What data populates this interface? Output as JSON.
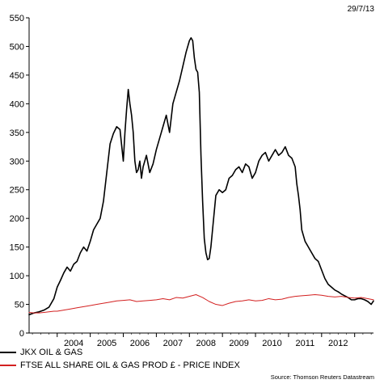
{
  "header": {
    "date": "29/7/13"
  },
  "footer": {
    "source": "Source: Thomson Reuters Datastream"
  },
  "chart_data": {
    "type": "line",
    "ylim": [
      0,
      550
    ],
    "yticks": [
      0,
      50,
      100,
      150,
      200,
      250,
      300,
      350,
      400,
      450,
      500,
      550
    ],
    "xlim": [
      2003.15,
      2013.57
    ],
    "year_labels": [
      "2004",
      "2005",
      "2006",
      "2007",
      "2008",
      "2009",
      "2010",
      "2011",
      "2012"
    ],
    "year_label_positions": [
      2004.5,
      2005.5,
      2006.5,
      2007.5,
      2008.5,
      2009.5,
      2010.5,
      2011.5,
      2012.5
    ],
    "year_boundaries": [
      2004,
      2005,
      2006,
      2007,
      2008,
      2009,
      2010,
      2011,
      2012,
      2013
    ],
    "grid": false,
    "legend_position": "bottom-left",
    "series": [
      {
        "name": "JKX OIL & GAS",
        "color": "#000000",
        "x": [
          2003.15,
          2003.3,
          2003.45,
          2003.6,
          2003.75,
          2003.9,
          2004.0,
          2004.1,
          2004.2,
          2004.3,
          2004.4,
          2004.5,
          2004.6,
          2004.7,
          2004.8,
          2004.9,
          2005.0,
          2005.1,
          2005.2,
          2005.3,
          2005.4,
          2005.5,
          2005.6,
          2005.7,
          2005.8,
          2005.9,
          2006.0,
          2006.05,
          2006.1,
          2006.15,
          2006.2,
          2006.25,
          2006.3,
          2006.35,
          2006.4,
          2006.45,
          2006.5,
          2006.55,
          2006.6,
          2006.7,
          2006.8,
          2006.9,
          2007.0,
          2007.1,
          2007.2,
          2007.3,
          2007.4,
          2007.5,
          2007.6,
          2007.7,
          2007.8,
          2007.9,
          2008.0,
          2008.05,
          2008.1,
          2008.15,
          2008.2,
          2008.25,
          2008.3,
          2008.35,
          2008.4,
          2008.45,
          2008.5,
          2008.55,
          2008.6,
          2008.65,
          2008.7,
          2008.75,
          2008.8,
          2008.9,
          2009.0,
          2009.1,
          2009.2,
          2009.3,
          2009.4,
          2009.5,
          2009.6,
          2009.7,
          2009.8,
          2009.9,
          2010.0,
          2010.1,
          2010.2,
          2010.3,
          2010.4,
          2010.5,
          2010.6,
          2010.7,
          2010.8,
          2010.9,
          2011.0,
          2011.1,
          2011.2,
          2011.25,
          2011.3,
          2011.35,
          2011.4,
          2011.5,
          2011.6,
          2011.7,
          2011.8,
          2011.9,
          2012.0,
          2012.1,
          2012.2,
          2012.3,
          2012.4,
          2012.5,
          2012.6,
          2012.7,
          2012.8,
          2012.9,
          2013.0,
          2013.1,
          2013.2,
          2013.3,
          2013.4,
          2013.5,
          2013.57
        ],
        "y": [
          32,
          35,
          37,
          40,
          45,
          60,
          80,
          92,
          105,
          115,
          108,
          120,
          125,
          140,
          150,
          143,
          160,
          180,
          190,
          200,
          230,
          280,
          330,
          348,
          360,
          355,
          300,
          350,
          390,
          425,
          400,
          380,
          350,
          300,
          280,
          285,
          300,
          270,
          290,
          310,
          280,
          295,
          320,
          340,
          360,
          380,
          350,
          400,
          420,
          440,
          465,
          490,
          510,
          515,
          510,
          480,
          460,
          455,
          420,
          310,
          230,
          165,
          140,
          128,
          130,
          150,
          180,
          210,
          240,
          250,
          245,
          250,
          270,
          275,
          285,
          290,
          280,
          295,
          290,
          270,
          280,
          300,
          310,
          315,
          300,
          310,
          320,
          310,
          315,
          325,
          310,
          305,
          290,
          260,
          240,
          215,
          180,
          160,
          150,
          140,
          130,
          125,
          110,
          95,
          85,
          80,
          75,
          72,
          68,
          65,
          62,
          58,
          58,
          60,
          60,
          58,
          55,
          50,
          56
        ]
      },
      {
        "name": "FTSE ALL SHARE OIL & GAS PROD £ - PRICE INDEX",
        "color": "#d32020",
        "x": [
          2003.15,
          2003.3,
          2003.45,
          2003.6,
          2003.75,
          2003.9,
          2004.0,
          2004.2,
          2004.4,
          2004.6,
          2004.8,
          2005.0,
          2005.2,
          2005.4,
          2005.6,
          2005.8,
          2006.0,
          2006.2,
          2006.4,
          2006.6,
          2006.8,
          2007.0,
          2007.2,
          2007.4,
          2007.6,
          2007.8,
          2008.0,
          2008.2,
          2008.4,
          2008.6,
          2008.8,
          2009.0,
          2009.2,
          2009.4,
          2009.6,
          2009.8,
          2010.0,
          2010.2,
          2010.4,
          2010.6,
          2010.8,
          2011.0,
          2011.2,
          2011.4,
          2011.6,
          2011.8,
          2012.0,
          2012.2,
          2012.4,
          2012.6,
          2012.8,
          2013.0,
          2013.2,
          2013.4,
          2013.57
        ],
        "y": [
          36,
          35,
          35,
          36,
          37,
          38,
          38,
          40,
          42,
          44,
          46,
          48,
          50,
          52,
          54,
          56,
          57,
          58,
          55,
          56,
          57,
          58,
          60,
          58,
          62,
          61,
          64,
          67,
          62,
          55,
          50,
          48,
          52,
          55,
          56,
          58,
          56,
          57,
          60,
          58,
          59,
          62,
          64,
          65,
          66,
          67,
          66,
          64,
          63,
          64,
          62,
          61,
          62,
          60,
          58
        ]
      }
    ]
  }
}
